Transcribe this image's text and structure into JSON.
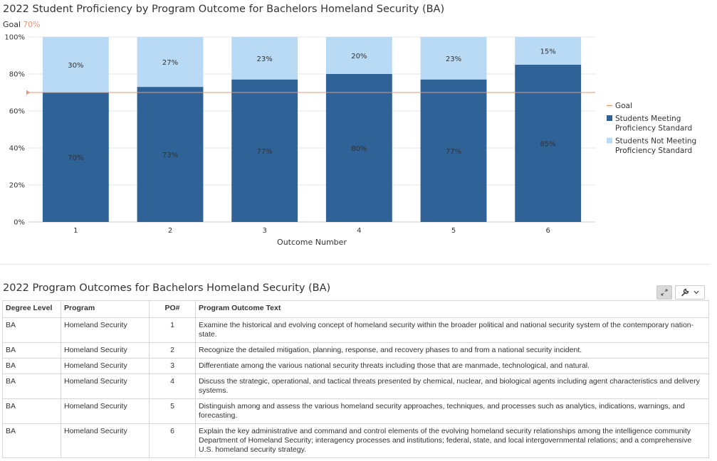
{
  "chart_data": {
    "type": "bar",
    "stacked": true,
    "title": "2022 Student Proficiency by Program Outcome for Bachelors Homeland Security (BA)",
    "goal_label": "Goal",
    "goal_value_label": "70%",
    "goal": 70,
    "xlabel": "Outcome Number",
    "ylabel": "",
    "ylim": [
      0,
      100
    ],
    "yticks": [
      "0%",
      "20%",
      "40%",
      "60%",
      "80%",
      "100%"
    ],
    "categories": [
      "1",
      "2",
      "3",
      "4",
      "5",
      "6"
    ],
    "series": [
      {
        "name": "Students Meeting Proficiency Standard",
        "color": "#2f6296",
        "values": [
          70,
          73,
          77,
          80,
          77,
          85
        ],
        "labels": [
          "70%",
          "73%",
          "77%",
          "80%",
          "77%",
          "85%"
        ]
      },
      {
        "name": "Students Not Meeting Proficiency Standard",
        "color": "#b8daf5",
        "values": [
          30,
          27,
          23,
          20,
          23,
          15
        ],
        "labels": [
          "30%",
          "27%",
          "23%",
          "20%",
          "23%",
          "15%"
        ]
      }
    ],
    "legend": {
      "position": "right",
      "items": [
        {
          "lines": [
            "Goal"
          ],
          "kind": "line",
          "color": "#e8967a"
        },
        {
          "lines": [
            "Students Meeting",
            "Proficiency Standard"
          ],
          "kind": "square",
          "color": "#2f6296"
        },
        {
          "lines": [
            "Students Not Meeting",
            "Proficiency Standard"
          ],
          "kind": "square",
          "color": "#b8daf5"
        }
      ]
    },
    "grid": true
  },
  "table": {
    "title": "2022 Program Outcomes for Bachelors Homeland Security (BA)",
    "headers": [
      "Degree Level",
      "Program",
      "PO#",
      "Program Outcome Text"
    ],
    "rows": [
      [
        "BA",
        "Homeland Security",
        "1",
        "Examine the historical and evolving concept of homeland security within the broader political and national security system of the contemporary nation-state."
      ],
      [
        "BA",
        "Homeland Security",
        "2",
        "Recognize the detailed mitigation, planning, response, and recovery phases to and from a national security incident."
      ],
      [
        "BA",
        "Homeland Security",
        "3",
        "Differentiate among the various national security threats including those that are manmade, technological, and natural."
      ],
      [
        "BA",
        "Homeland Security",
        "4",
        "Discuss the strategic, operational, and tactical threats presented by chemical, nuclear, and biological agents including agent characteristics and delivery systems."
      ],
      [
        "BA",
        "Homeland Security",
        "5",
        "Distinguish among and assess the various homeland security approaches, techniques, and processes such as analytics, indications, warnings, and forecasting."
      ],
      [
        "BA",
        "Homeland Security",
        "6",
        "Explain the key administrative and command and control elements of the evolving homeland security relationships among the intelligence community Department of Homeland Security; interagency processes and institutions; federal, state, and local intergovernmental relations; and a comprehensive U.S. homeland security strategy."
      ]
    ]
  },
  "toolbar": {
    "expand_icon": "expand-icon",
    "wrench_icon": "wrench-icon",
    "chevron_icon": "chevron-down-icon"
  }
}
